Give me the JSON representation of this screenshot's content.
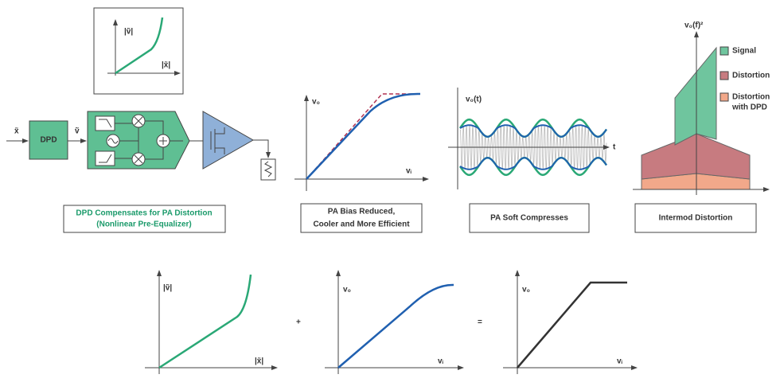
{
  "dpd_chain": {
    "inset": {
      "y_label": "|ṽ|",
      "x_label": "|x̃|"
    },
    "input_label": "x̃",
    "block": "DPD",
    "output_label": "ṽ",
    "caption": [
      "DPD Compensates for PA Distortion",
      "(Nonlinear Pre-Equalizer)"
    ]
  },
  "bias_panel": {
    "y_label": "v₀",
    "x_label": "vᵢ",
    "caption": [
      "PA Bias Reduced,",
      "Cooler and More Efficient"
    ]
  },
  "compression_panel": {
    "y_label": "v₀(t)",
    "x_label": "t",
    "caption": "PA Soft Compresses"
  },
  "spectrum_panel": {
    "y_label": "v₀(f)²",
    "legend": [
      "Signal",
      "Distortion",
      [
        "Distortion",
        "with DPD"
      ]
    ],
    "caption": "Intermod Distortion"
  },
  "equation": {
    "predistortion": {
      "y_label": "|ṽ|",
      "x_label": "|x̃|"
    },
    "plus": "+",
    "amplifier": {
      "y_label": "v₀",
      "x_label": "vᵢ"
    },
    "equals": "=",
    "result": {
      "y_label": "v₀",
      "x_label": "vᵢ"
    }
  }
}
